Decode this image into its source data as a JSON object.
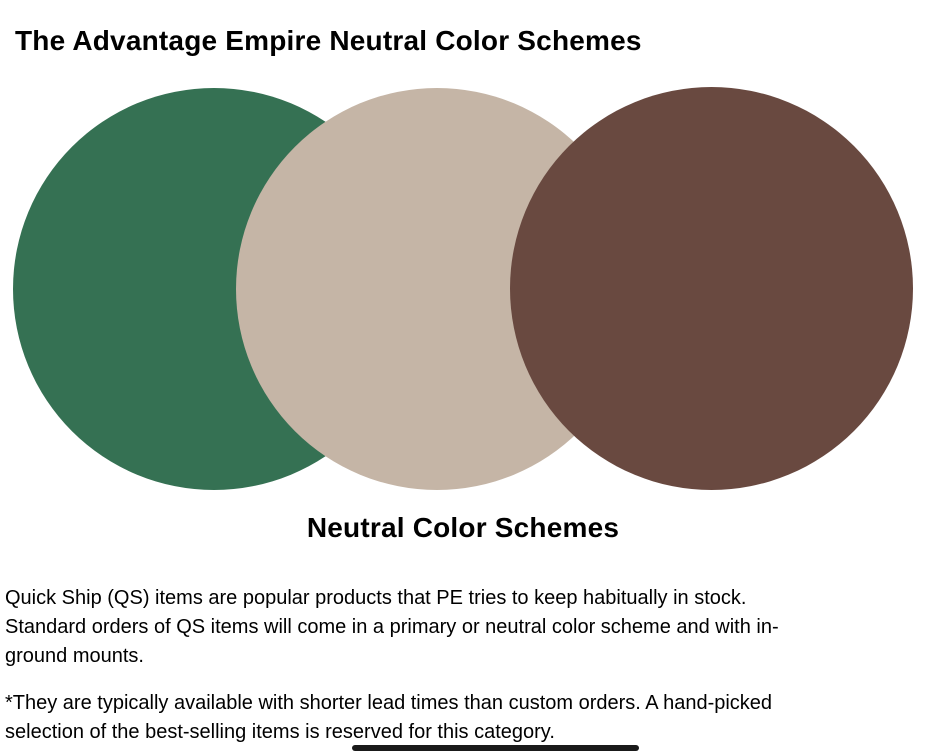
{
  "title": {
    "prefix": "The Advantage Empire",
    "suffix": "Neutral Color Schemes"
  },
  "figure": {
    "caption": "Neutral Color Schemes",
    "circles": [
      {
        "name": "green-swatch",
        "color": "#357153"
      },
      {
        "name": "beige-swatch",
        "color": "#c5b5a6"
      },
      {
        "name": "brown-swatch",
        "color": "#694940"
      }
    ]
  },
  "body": {
    "para1_lines": [
      "Quick Ship (QS) items are popular products that PE tries to keep habitually in stock.",
      "Standard orders of QS items will come in a primary or neutral color scheme and with in-",
      "ground mounts."
    ],
    "para2_lines": [
      "*They are typically available with shorter lead times than custom orders. A hand-picked",
      "selection of the best-selling items is reserved for this category."
    ]
  },
  "bottom_bar": {
    "color": "#1a1a1a"
  }
}
